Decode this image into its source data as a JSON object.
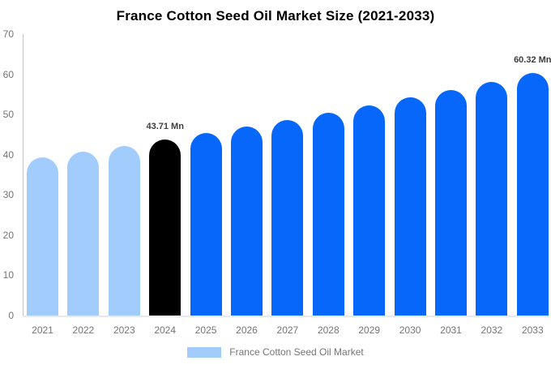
{
  "chart": {
    "title": "France Cotton Seed Oil Market Size (2021-2033)",
    "legend_label": "France Cotton Seed Oil Market"
  },
  "chart_data": {
    "type": "bar",
    "title": "France Cotton Seed Oil Market Size (2021-2033)",
    "unit": "Mn",
    "categories": [
      2021,
      2022,
      2023,
      2024,
      2025,
      2026,
      2027,
      2028,
      2029,
      2030,
      2031,
      2032,
      2033
    ],
    "values": [
      39.26,
      40.69,
      42.17,
      43.71,
      45.3,
      46.95,
      48.66,
      50.43,
      52.27,
      54.17,
      56.14,
      58.19,
      60.32
    ],
    "bar_colors": [
      "#A2CCFB",
      "#A2CCFB",
      "#A2CCFB",
      "#000000",
      "#0667FA",
      "#0667FA",
      "#0667FA",
      "#0667FA",
      "#0667FA",
      "#0667FA",
      "#0667FA",
      "#0667FA",
      "#0667FA"
    ],
    "yticks": [
      0,
      10,
      20,
      30,
      40,
      50,
      60,
      70
    ],
    "ylim": [
      0,
      70
    ],
    "xlabel": "",
    "ylabel": "",
    "grid": false,
    "legend": {
      "position": "bottom",
      "entries": [
        {
          "label": "France Cotton Seed Oil Market",
          "swatch": "#A2CCFB"
        }
      ]
    },
    "annotations": [
      {
        "category": 2024,
        "text": "43.71 Mn"
      },
      {
        "category": 2033,
        "text": "60.32 Mn"
      }
    ]
  },
  "colors": {
    "historical_bar": "#A2CCFB",
    "highlight_bar": "#000000",
    "forecast_bar": "#0667FA",
    "axis_line": "#C4C4C4",
    "baseline": "#E9E9E9",
    "tick_label": "#757575",
    "legend_text": "#757575",
    "annotation_text": "#3D3D3D",
    "title_text": "#000000",
    "background": "#FFFFFF"
  }
}
